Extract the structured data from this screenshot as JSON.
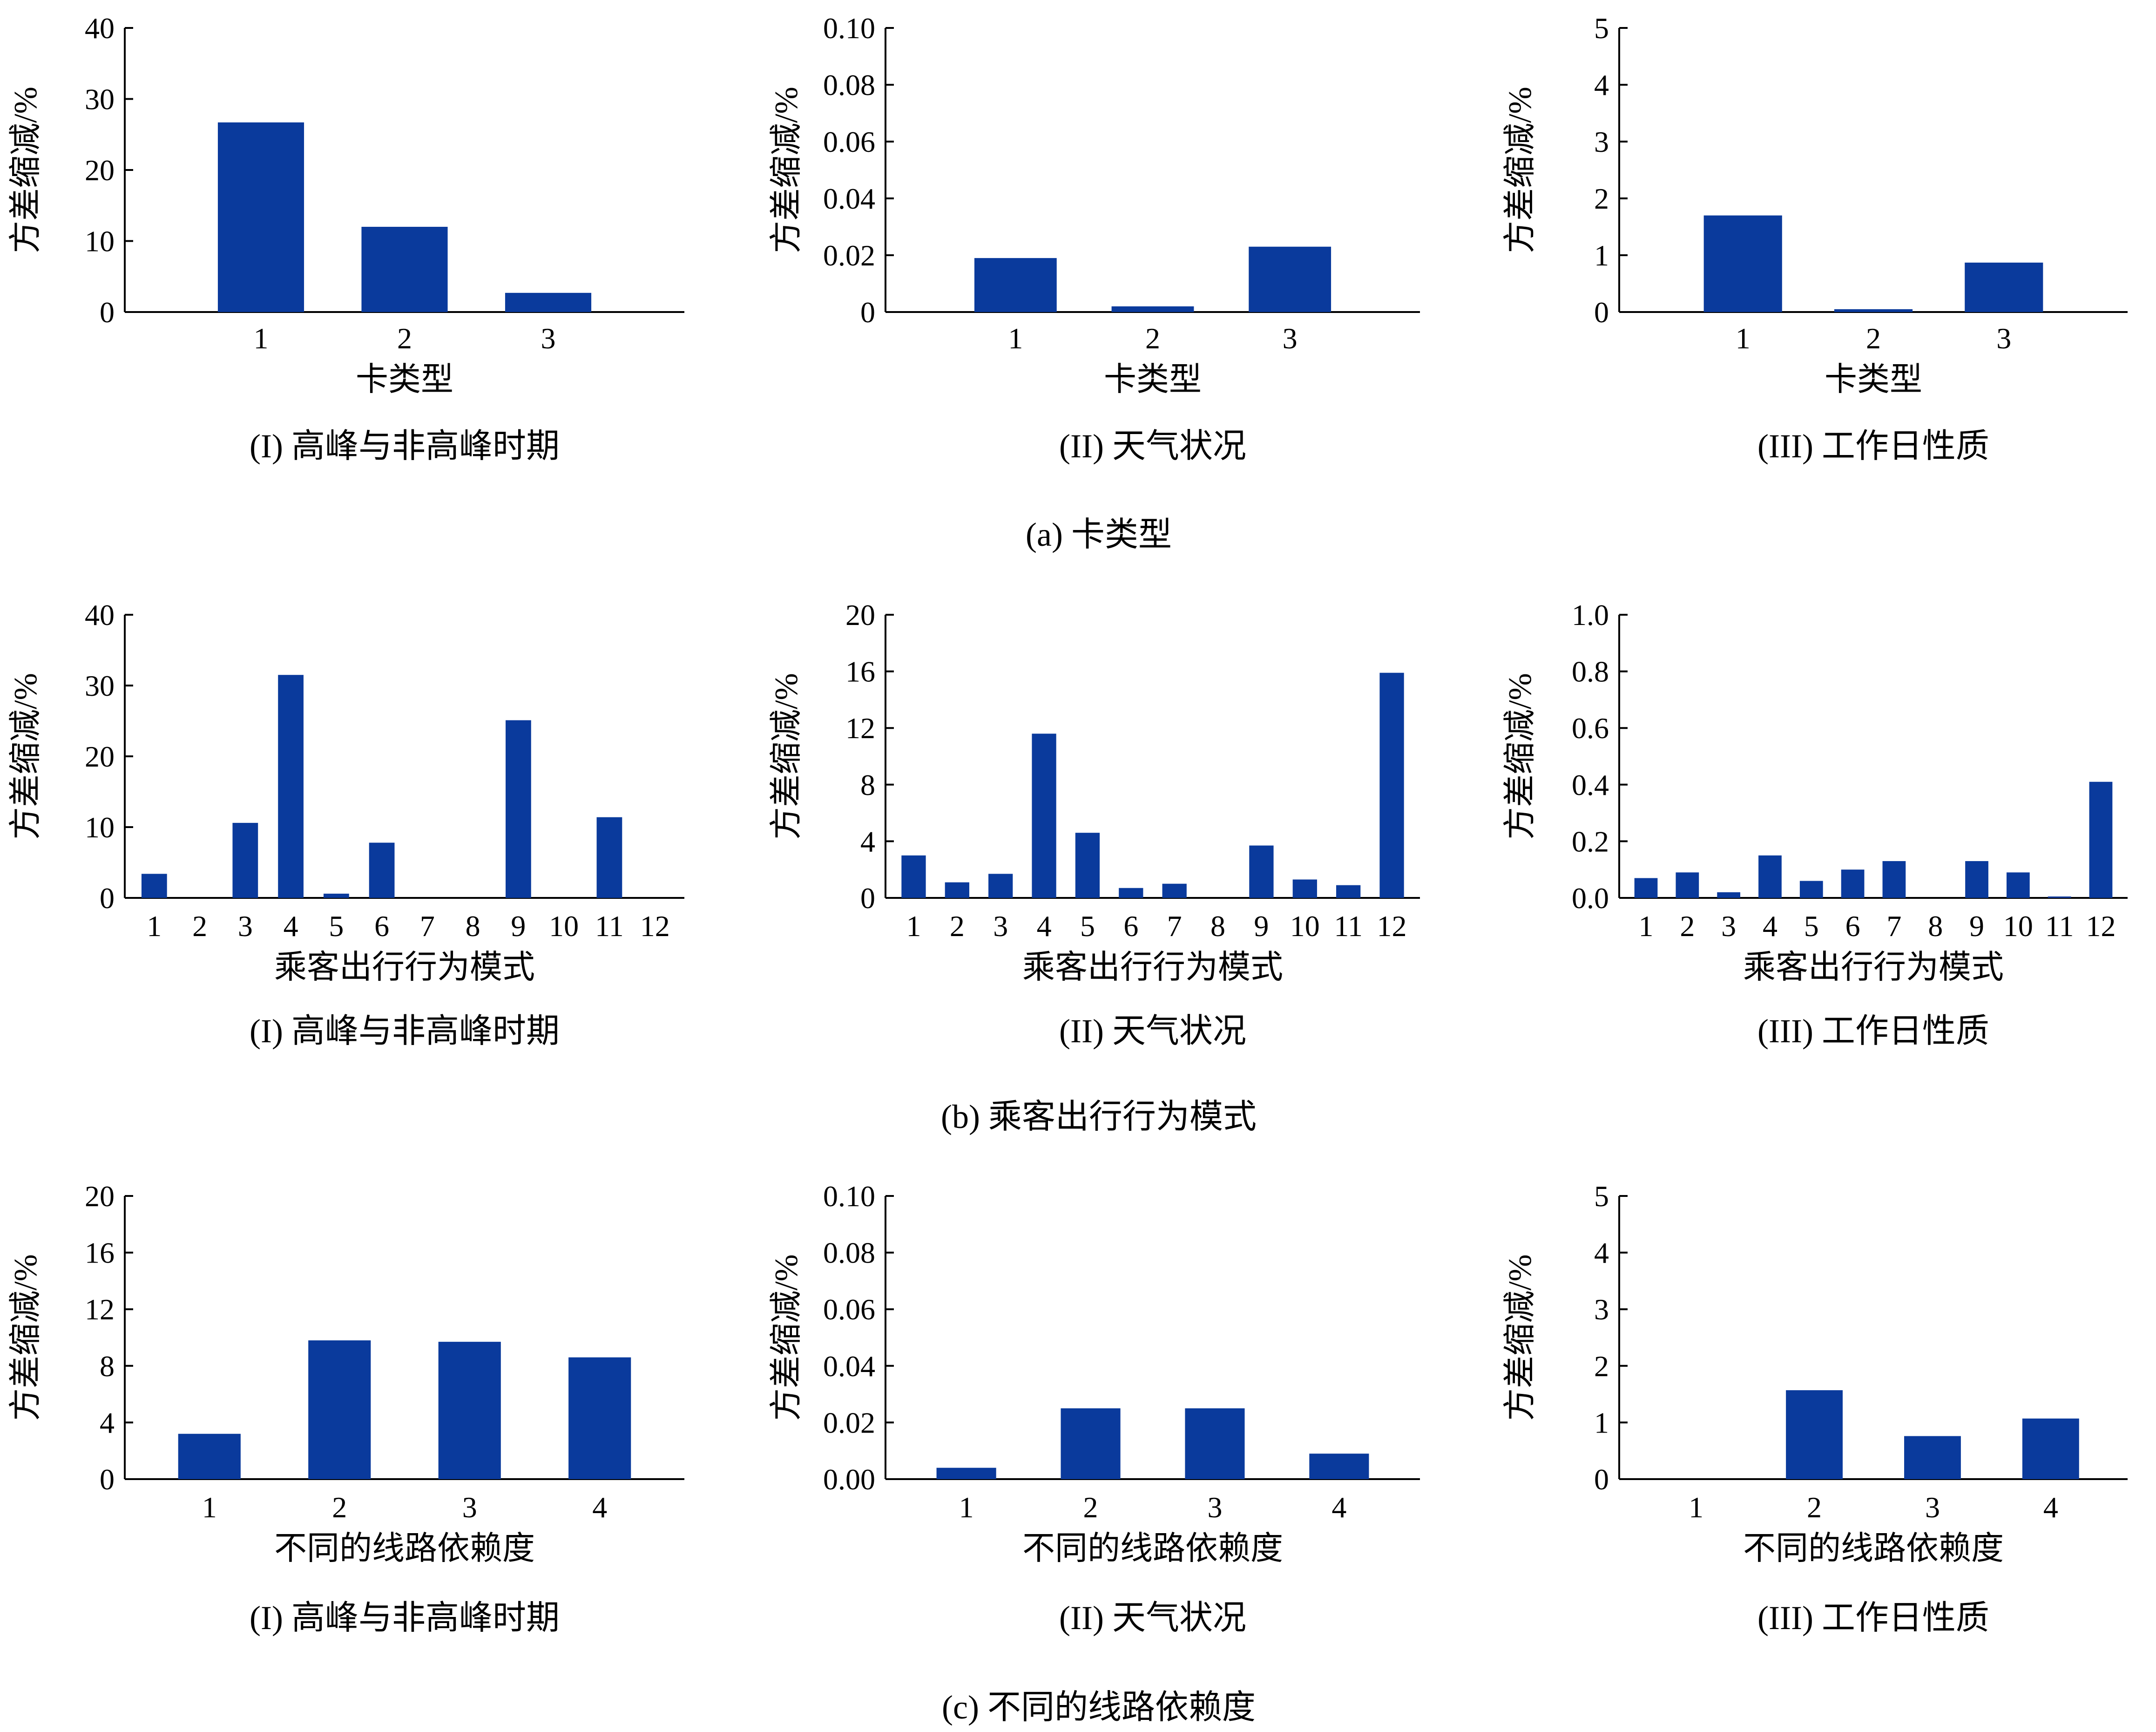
{
  "colors": {
    "bar": "#0a3a9c",
    "axis": "#000000",
    "background": "#ffffff"
  },
  "chart_data": [
    {
      "group": "a",
      "type": "bar",
      "title": "(I) 高峰与非高峰时期",
      "xlabel": "卡类型",
      "ylabel": "方差缩减/%",
      "categories": [
        "1",
        "2",
        "3"
      ],
      "values": [
        26.7,
        12.0,
        2.7
      ],
      "ylim": [
        0,
        40
      ],
      "yticks": [
        "0",
        "10",
        "20",
        "30",
        "40"
      ]
    },
    {
      "group": "a",
      "type": "bar",
      "title": "(II) 天气状况",
      "xlabel": "卡类型",
      "ylabel": "方差缩减/%",
      "categories": [
        "1",
        "2",
        "3"
      ],
      "values": [
        0.019,
        0.002,
        0.023
      ],
      "ylim": [
        0,
        0.1
      ],
      "yticks": [
        "0",
        "0.02",
        "0.04",
        "0.06",
        "0.08",
        "0.10"
      ]
    },
    {
      "group": "a",
      "type": "bar",
      "title": "(III) 工作日性质",
      "xlabel": "卡类型",
      "ylabel": "方差缩减/%",
      "categories": [
        "1",
        "2",
        "3"
      ],
      "values": [
        1.7,
        0.05,
        0.87
      ],
      "ylim": [
        0,
        5
      ],
      "yticks": [
        "0",
        "1",
        "2",
        "3",
        "4",
        "5"
      ]
    },
    {
      "group": "b",
      "type": "bar",
      "title": "(I) 高峰与非高峰时期",
      "xlabel": "乘客出行行为模式",
      "ylabel": "方差缩减/%",
      "categories": [
        "1",
        "2",
        "3",
        "4",
        "5",
        "6",
        "7",
        "8",
        "9",
        "10",
        "11",
        "12"
      ],
      "values": [
        3.4,
        0,
        10.6,
        31.5,
        0.6,
        7.8,
        0,
        0,
        25.1,
        0,
        11.4,
        0
      ],
      "ylim": [
        0,
        40
      ],
      "yticks": [
        "0",
        "10",
        "20",
        "30",
        "40"
      ]
    },
    {
      "group": "b",
      "type": "bar",
      "title": "(II) 天气状况",
      "xlabel": "乘客出行行为模式",
      "ylabel": "方差缩减/%",
      "categories": [
        "1",
        "2",
        "3",
        "4",
        "5",
        "6",
        "7",
        "8",
        "9",
        "10",
        "11",
        "12"
      ],
      "values": [
        3.0,
        1.1,
        1.7,
        11.6,
        4.6,
        0.7,
        1.0,
        0,
        3.7,
        1.3,
        0.9,
        15.9
      ],
      "ylim": [
        0,
        20
      ],
      "yticks": [
        "0",
        "4",
        "8",
        "12",
        "16",
        "20"
      ]
    },
    {
      "group": "b",
      "type": "bar",
      "title": "(III) 工作日性质",
      "xlabel": "乘客出行行为模式",
      "ylabel": "方差缩减/%",
      "categories": [
        "1",
        "2",
        "3",
        "4",
        "5",
        "6",
        "7",
        "8",
        "9",
        "10",
        "11",
        "12"
      ],
      "values": [
        0.07,
        0.09,
        0.02,
        0.15,
        0.06,
        0.1,
        0.13,
        0,
        0.13,
        0.09,
        0.005,
        0.41
      ],
      "ylim": [
        0,
        1.0
      ],
      "yticks": [
        "0.0",
        "0.2",
        "0.4",
        "0.6",
        "0.8",
        "1.0"
      ]
    },
    {
      "group": "c",
      "type": "bar",
      "title": "(I) 高峰与非高峰时期",
      "xlabel": "不同的线路依赖度",
      "ylabel": "方差缩减/%",
      "categories": [
        "1",
        "2",
        "3",
        "4"
      ],
      "values": [
        3.2,
        9.8,
        9.7,
        8.6
      ],
      "ylim": [
        0,
        20
      ],
      "yticks": [
        "0",
        "4",
        "8",
        "12",
        "16",
        "20"
      ]
    },
    {
      "group": "c",
      "type": "bar",
      "title": "(II) 天气状况",
      "xlabel": "不同的线路依赖度",
      "ylabel": "方差缩减/%",
      "categories": [
        "1",
        "2",
        "3",
        "4"
      ],
      "values": [
        0.004,
        0.025,
        0.025,
        0.009
      ],
      "ylim": [
        0,
        0.1
      ],
      "yticks": [
        "0.00",
        "0.02",
        "0.04",
        "0.06",
        "0.08",
        "0.10"
      ]
    },
    {
      "group": "c",
      "type": "bar",
      "title": "(III) 工作日性质",
      "xlabel": "不同的线路依赖度",
      "ylabel": "方差缩减/%",
      "categories": [
        "1",
        "2",
        "3",
        "4"
      ],
      "values": [
        0,
        1.57,
        0.76,
        1.07
      ],
      "ylim": [
        0,
        5
      ],
      "yticks": [
        "0",
        "1",
        "2",
        "3",
        "4",
        "5"
      ]
    }
  ],
  "groups": [
    {
      "id": "a",
      "caption": "(a) 卡类型"
    },
    {
      "id": "b",
      "caption": "(b) 乘客出行行为模式"
    },
    {
      "id": "c",
      "caption": "(c) 不同的线路依赖度"
    }
  ]
}
